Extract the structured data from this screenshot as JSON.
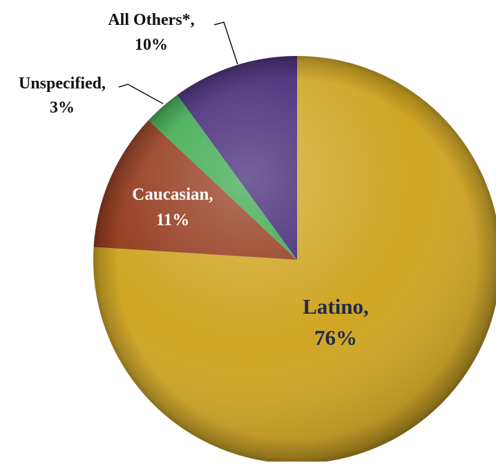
{
  "chart_data": {
    "type": "pie",
    "title": "",
    "slices": [
      {
        "label": "Latino,",
        "value_label": "76%",
        "value": 76,
        "color": "#cfa522",
        "label_color": "#1e2a4a"
      },
      {
        "label": "Caucasian,",
        "value_label": "11%",
        "value": 11,
        "color": "#933a1c",
        "label_color": "#ffffff"
      },
      {
        "label": "Unspecified,",
        "value_label": "3%",
        "value": 3,
        "color": "#3aa84c",
        "label_color": "#111111"
      },
      {
        "label": "All Others*,",
        "value_label": "10%",
        "value": 10,
        "color": "#3f2474",
        "label_color": "#111111"
      }
    ],
    "start": "12 o'clock",
    "direction": "clockwise",
    "legend": "none"
  }
}
